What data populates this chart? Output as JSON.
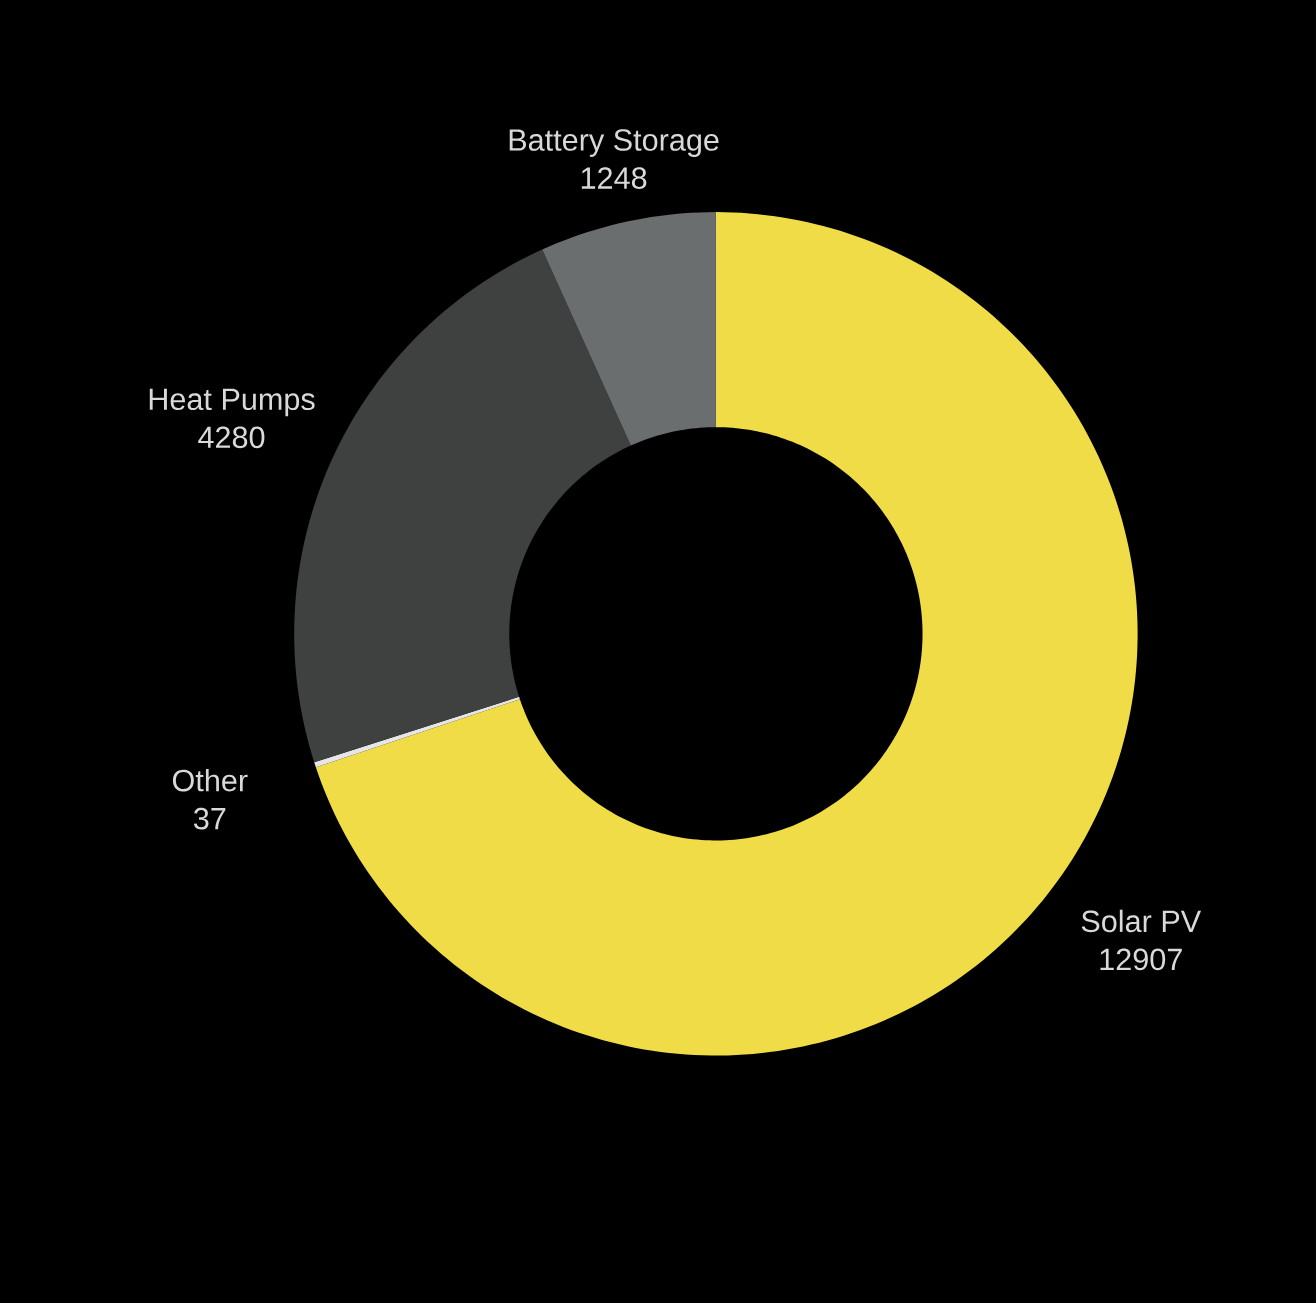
{
  "chart_data": {
    "type": "donut",
    "categories": [
      "Solar PV",
      "Other",
      "Heat Pumps",
      "Battery Storage"
    ],
    "values": [
      12907,
      37,
      4280,
      1248
    ],
    "colors": [
      "#f0dc46",
      "#e6e6e6",
      "#3f4141",
      "#6b6e6e"
    ],
    "data_labels": true
  }
}
